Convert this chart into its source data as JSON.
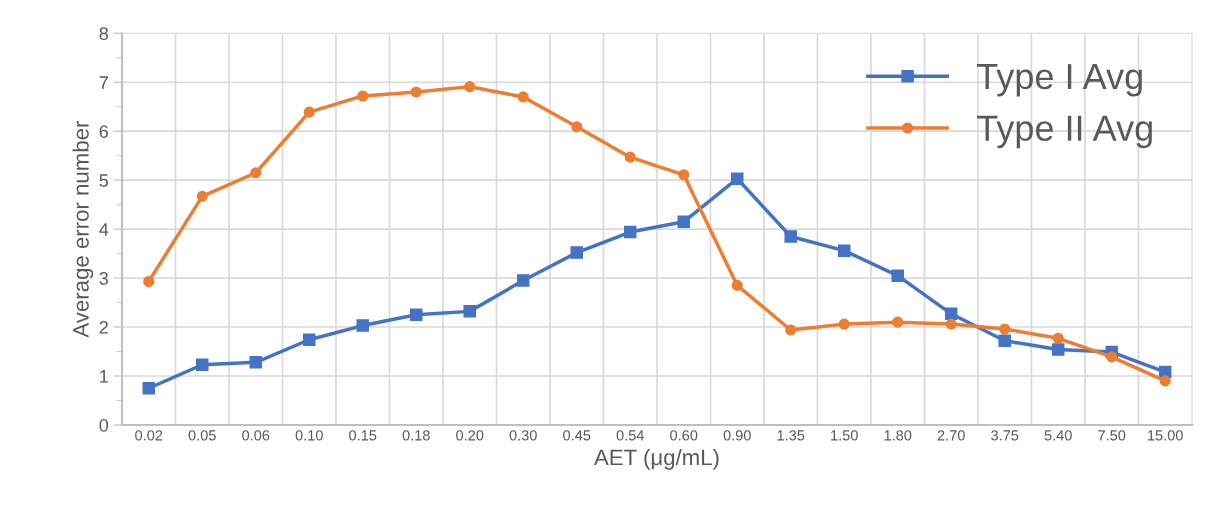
{
  "chart_data": {
    "type": "line",
    "xlabel": "AET (μg/mL)",
    "ylabel": "Average error number",
    "categories": [
      "0.02",
      "0.05",
      "0.06",
      "0.10",
      "0.15",
      "0.18",
      "0.20",
      "0.30",
      "0.45",
      "0.54",
      "0.60",
      "0.90",
      "1.35",
      "1.50",
      "1.80",
      "2.70",
      "3.75",
      "5.40",
      "7.50",
      "15.00"
    ],
    "series": [
      {
        "name": "Type I Avg",
        "color": "#4472c4",
        "marker": "square",
        "values": [
          0.75,
          1.23,
          1.28,
          1.74,
          2.03,
          2.25,
          2.32,
          2.95,
          3.52,
          3.94,
          4.15,
          5.03,
          3.85,
          3.56,
          3.05,
          2.27,
          1.72,
          1.54,
          1.49,
          1.08
        ]
      },
      {
        "name": "Type II Avg",
        "color": "#ed7d31",
        "marker": "circle",
        "values": [
          2.93,
          4.67,
          5.15,
          6.39,
          6.72,
          6.8,
          6.91,
          6.7,
          6.09,
          5.47,
          5.11,
          2.85,
          1.94,
          2.06,
          2.1,
          2.06,
          1.96,
          1.77,
          1.39,
          0.9
        ]
      }
    ],
    "ylim": [
      0,
      8
    ],
    "yticks": [
      0,
      1,
      2,
      3,
      4,
      5,
      6,
      7,
      8
    ],
    "grid": true,
    "legend": "top right",
    "line_style": "solid"
  }
}
